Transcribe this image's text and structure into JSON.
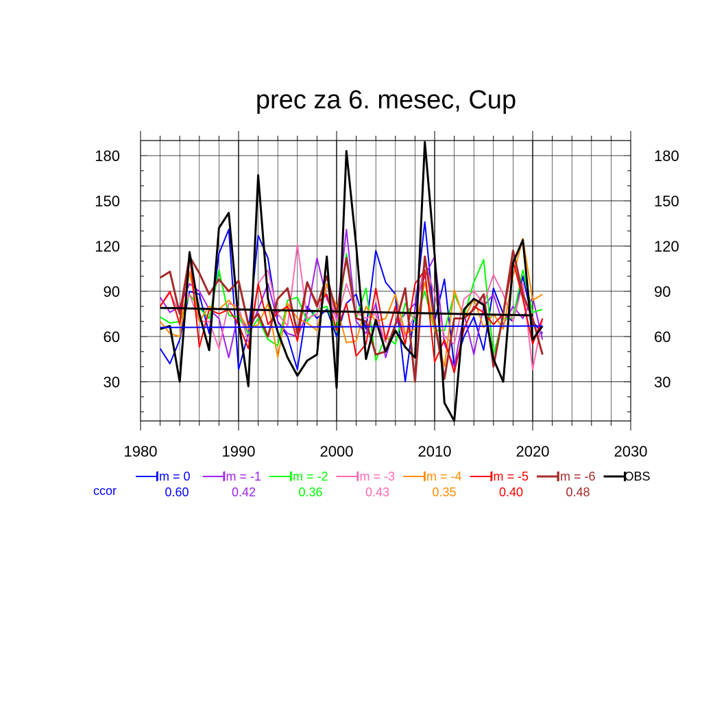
{
  "chart_data": {
    "type": "line",
    "title": "prec za 6. mesec, Cup",
    "xlabel": "",
    "ylabel": "",
    "xlim": [
      1980,
      2030
    ],
    "ylim": [
      4,
      190
    ],
    "xticks": [
      1980,
      1990,
      2000,
      2010,
      2020,
      2030
    ],
    "yticks": [
      30,
      60,
      90,
      120,
      150,
      180
    ],
    "grid": true,
    "x": [
      1982,
      1983,
      1984,
      1985,
      1986,
      1987,
      1988,
      1989,
      1990,
      1991,
      1992,
      1993,
      1994,
      1995,
      1996,
      1997,
      1998,
      1999,
      2000,
      2001,
      2002,
      2003,
      2004,
      2005,
      2006,
      2007,
      2008,
      2009,
      2010,
      2011,
      2012,
      2013,
      2014,
      2015,
      2016,
      2017,
      2018,
      2019,
      2020,
      2021
    ],
    "series": [
      {
        "name": "lm = 0",
        "color": "#0000ff",
        "width": 2,
        "values": [
          52,
          42,
          58,
          90,
          88,
          62,
          115,
          131,
          38,
          62,
          127,
          112,
          70,
          60,
          38,
          80,
          72,
          78,
          60,
          82,
          88,
          65,
          117,
          96,
          88,
          30,
          78,
          136,
          70,
          98,
          40,
          60,
          73,
          51,
          92,
          75,
          70,
          100,
          70,
          62
        ]
      },
      {
        "name": "lm = -1",
        "color": "#a020f0",
        "width": 2,
        "values": [
          86,
          76,
          80,
          95,
          90,
          78,
          72,
          46,
          76,
          62,
          78,
          95,
          70,
          62,
          60,
          75,
          112,
          85,
          72,
          131,
          70,
          62,
          82,
          46,
          68,
          75,
          82,
          100,
          113,
          55,
          40,
          75,
          48,
          80,
          88,
          68,
          80,
          72,
          86,
          58
        ]
      },
      {
        "name": "lm = -2",
        "color": "#00ff00",
        "width": 2,
        "values": [
          73,
          69,
          70,
          88,
          79,
          72,
          104,
          74,
          73,
          62,
          72,
          58,
          54,
          84,
          86,
          70,
          78,
          80,
          63,
          115,
          72,
          92,
          44,
          60,
          55,
          82,
          70,
          90,
          64,
          64,
          88,
          74,
          96,
          111,
          48,
          72,
          72,
          104,
          76,
          78
        ]
      },
      {
        "name": "lm = -3",
        "color": "#ff69b4",
        "width": 2,
        "values": [
          80,
          89,
          75,
          88,
          70,
          70,
          52,
          82,
          80,
          56,
          95,
          104,
          75,
          67,
          121,
          72,
          75,
          95,
          70,
          95,
          76,
          72,
          75,
          56,
          80,
          60,
          75,
          110,
          88,
          60,
          55,
          85,
          90,
          82,
          101,
          88,
          70,
          95,
          38,
          72
        ]
      },
      {
        "name": "lm = -4",
        "color": "#ff8c00",
        "width": 2,
        "values": [
          70,
          62,
          60,
          103,
          70,
          80,
          78,
          84,
          76,
          65,
          68,
          82,
          46,
          82,
          72,
          69,
          64,
          95,
          80,
          56,
          57,
          80,
          70,
          72,
          88,
          62,
          65,
          96,
          65,
          40,
          91,
          72,
          85,
          66,
          75,
          65,
          100,
          125,
          84,
          88
        ]
      },
      {
        "name": "lm = -5",
        "color": "#ff0000",
        "width": 2,
        "values": [
          80,
          90,
          68,
          115,
          53,
          78,
          75,
          78,
          68,
          52,
          95,
          68,
          76,
          80,
          57,
          95,
          82,
          88,
          64,
          82,
          47,
          55,
          92,
          58,
          80,
          55,
          95,
          104,
          43,
          58,
          36,
          65,
          80,
          76,
          68,
          75,
          110,
          85,
          55,
          72
        ]
      },
      {
        "name": "lm = -6",
        "color": "#a52a2a",
        "width": 3,
        "values": [
          99,
          103,
          75,
          113,
          102,
          88,
          98,
          90,
          97,
          68,
          75,
          60,
          85,
          92,
          62,
          96,
          80,
          100,
          75,
          112,
          72,
          70,
          48,
          50,
          68,
          92,
          30,
          113,
          70,
          32,
          72,
          72,
          78,
          88,
          40,
          75,
          117,
          88,
          72,
          48
        ]
      },
      {
        "name": "OBS",
        "color": "#000000",
        "width": 3,
        "values": [
          65,
          67,
          30,
          116,
          75,
          51,
          132,
          142,
          70,
          27,
          167,
          85,
          63,
          46,
          34,
          44,
          48,
          113,
          26,
          183,
          120,
          45,
          71,
          50,
          64,
          53,
          46,
          189,
          114,
          16,
          4,
          78,
          85,
          81,
          45,
          30,
          109,
          124,
          58,
          67
        ]
      }
    ],
    "trends": [
      {
        "name": "lm = 0",
        "color": "#0000ff",
        "x": [
          1982,
          2021
        ],
        "y": [
          66,
          67
        ],
        "width": 2
      },
      {
        "name": "OBS",
        "color": "#000000",
        "x": [
          1982,
          2020
        ],
        "y": [
          79,
          74
        ],
        "width": 3
      }
    ],
    "legend": {
      "placement": "bottom",
      "entries": [
        "lm = 0",
        "lm = -1",
        "lm = -2",
        "lm = -3",
        "lm = -4",
        "lm = -5",
        "lm = -6",
        "OBS"
      ],
      "ccor_label": "ccor",
      "ccor_label_color": "#0000ff",
      "ccor_values": [
        "0.60",
        "0.42",
        "0.36",
        "0.43",
        "0.35",
        "0.40",
        "0.48"
      ]
    }
  }
}
